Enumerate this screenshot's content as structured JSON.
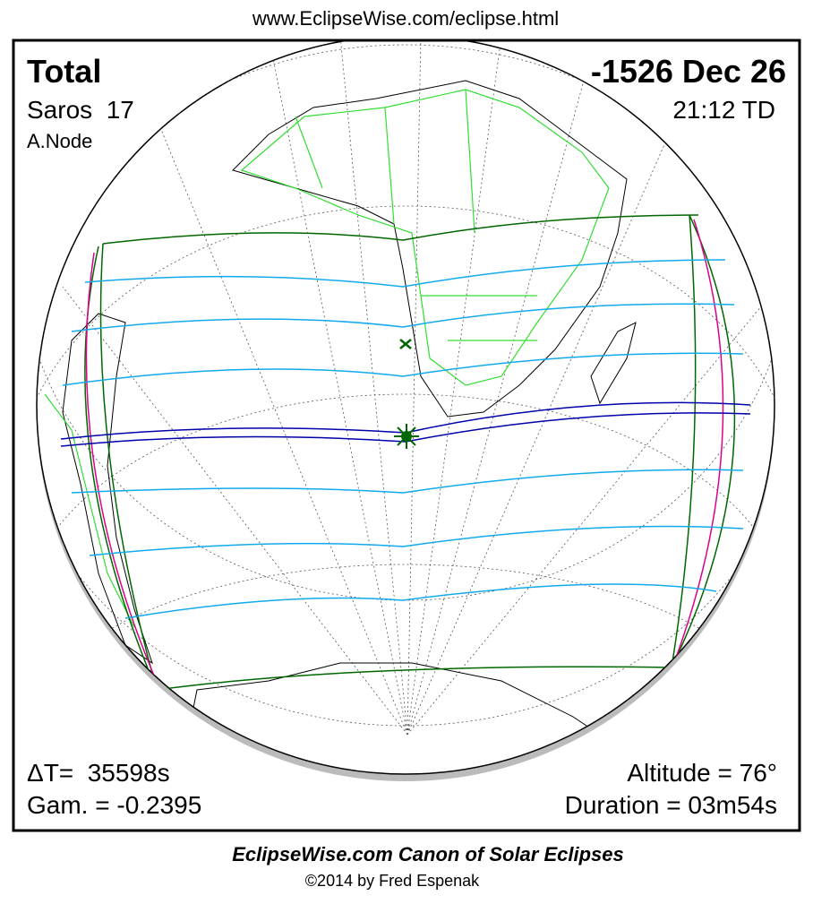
{
  "header": {
    "url": "www.EclipseWise.com/eclipse.html"
  },
  "panel": {
    "eclipse_type": "Total",
    "date": "-1526 Dec 26",
    "saros": "Saros  17",
    "time": "21:12 TD",
    "node": "A.Node",
    "delta_t": "ΔT=  35598s",
    "gamma": "Gam. = -0.2395",
    "altitude": "Altitude = 76°",
    "duration": "Duration = 03m54s"
  },
  "footer": {
    "title": "EclipseWise.com Canon of Solar Eclipses",
    "copyright": "©2014 by Fred Espenak"
  }
}
